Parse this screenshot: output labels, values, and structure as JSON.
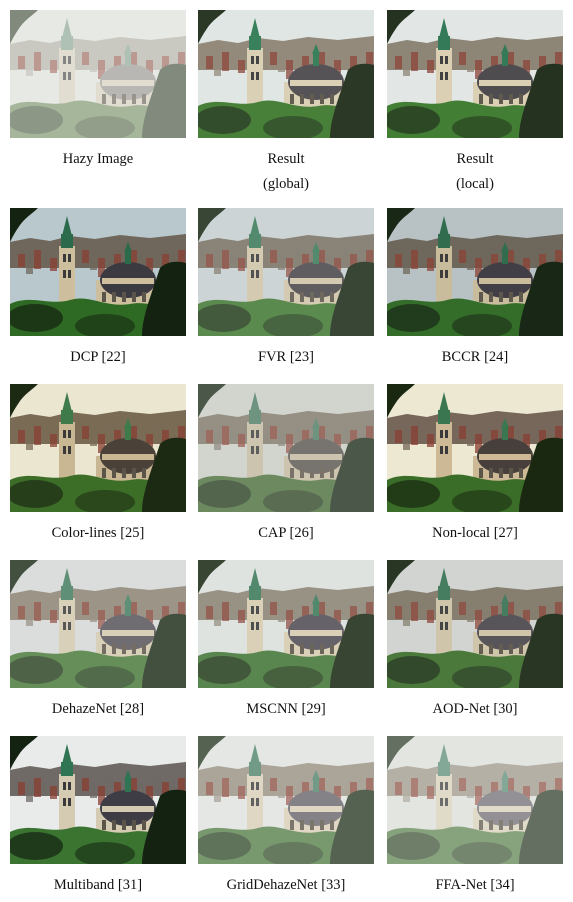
{
  "figure": {
    "panels": [
      {
        "caption": [
          "Hazy Image"
        ],
        "style": {
          "sky": "#d9dbd6",
          "city": "#a9a79c",
          "tower": "#7f9a86",
          "dome": "#8e8c86",
          "bldg": "#cfc8b4",
          "tree": "#6f8a5e",
          "dark": "#34432c",
          "haze": 0.38
        }
      },
      {
        "caption": [
          "Result",
          "(global)"
        ],
        "style": {
          "sky": "#dfe5e3",
          "city": "#8e8474",
          "tower": "#2f7a55",
          "dome": "#4d4a4e",
          "bldg": "#d8ceb2",
          "tree": "#3f7a30",
          "dark": "#1f2e1a",
          "haze": 0.05
        }
      },
      {
        "caption": [
          "Result",
          "(local)"
        ],
        "style": {
          "sky": "#e2e7e6",
          "city": "#8a8272",
          "tower": "#2e7654",
          "dome": "#4a474b",
          "bldg": "#dacfb1",
          "tree": "#3c7a2e",
          "dark": "#1d2c18",
          "haze": 0.03
        }
      },
      {
        "caption": [
          "DCP [22]"
        ],
        "style": {
          "sky": "#b9c8cc",
          "city": "#6f675c",
          "tower": "#2b6b4c",
          "dome": "#3b3a40",
          "bldg": "#cdbf9e",
          "tree": "#2f6a24",
          "dark": "#142211",
          "haze": 0.0
        }
      },
      {
        "caption": [
          "FVR [23]"
        ],
        "style": {
          "sky": "#c6cfd0",
          "city": "#7a7266",
          "tower": "#3c7a5a",
          "dome": "#49474b",
          "bldg": "#cdc3a7",
          "tree": "#447a36",
          "dark": "#1e2d1a",
          "haze": 0.12
        }
      },
      {
        "caption": [
          "BCCR [24]"
        ],
        "style": {
          "sky": "#b7c1c4",
          "city": "#6c6459",
          "tower": "#2d6a4c",
          "dome": "#3e3c42",
          "bldg": "#c8bb9c",
          "tree": "#2f6b25",
          "dark": "#152312",
          "haze": 0.02
        }
      },
      {
        "caption": [
          "Color-lines [25]"
        ],
        "style": {
          "sky": "#eae6cf",
          "city": "#7a6b55",
          "tower": "#3f7a4b",
          "dome": "#4a4238",
          "bldg": "#c9b793",
          "tree": "#3d6e28",
          "dark": "#1c2913",
          "haze": 0.0
        }
      },
      {
        "caption": [
          "CAP [26]"
        ],
        "style": {
          "sky": "#c9ccc4",
          "city": "#7e776a",
          "tower": "#4f7c62",
          "dome": "#5a5650",
          "bldg": "#c2b89f",
          "tree": "#4c6f3e",
          "dark": "#243220",
          "haze": 0.18
        }
      },
      {
        "caption": [
          "Non-local [27]"
        ],
        "style": {
          "sky": "#ece8d1",
          "city": "#76675a",
          "tower": "#3a7750",
          "dome": "#463f3c",
          "bldg": "#cdb996",
          "tree": "#3a6d27",
          "dark": "#1a2812",
          "haze": 0.0
        }
      },
      {
        "caption": [
          "DehazeNet [28]"
        ],
        "style": {
          "sky": "#d4d8d5",
          "city": "#8a8273",
          "tower": "#447c5f",
          "dome": "#57545a",
          "bldg": "#d3c8ad",
          "tree": "#4b7b3c",
          "dark": "#23321e",
          "haze": 0.15
        }
      },
      {
        "caption": [
          "MSCNN [29]"
        ],
        "style": {
          "sky": "#dce0dd",
          "city": "#8d8677",
          "tower": "#3f7b5c",
          "dome": "#545158",
          "bldg": "#d6cbb0",
          "tree": "#47793a",
          "dark": "#22301c",
          "haze": 0.1
        }
      },
      {
        "caption": [
          "AOD-Net [30]"
        ],
        "style": {
          "sky": "#cfd2cf",
          "city": "#7f7868",
          "tower": "#3b7457",
          "dome": "#4d4a50",
          "bldg": "#cdc2a5",
          "tree": "#40702f",
          "dark": "#1c2a17",
          "haze": 0.06
        }
      },
      {
        "caption": [
          "Multiband [31]"
        ],
        "style": {
          "sky": "#e8ebea",
          "city": "#6f6a66",
          "tower": "#2f7453",
          "dome": "#3e3d45",
          "bldg": "#d5cbb3",
          "tree": "#3a7430",
          "dark": "#142212",
          "haze": 0.0
        }
      },
      {
        "caption": [
          "GridDehazeNet [33]"
        ],
        "style": {
          "sky": "#dfe2de",
          "city": "#958e80",
          "tower": "#4e826a",
          "dome": "#66626a",
          "bldg": "#d7cdb4",
          "tree": "#577f4a",
          "dark": "#2b3a26",
          "haze": 0.2
        }
      },
      {
        "caption": [
          "FFA-Net [34]"
        ],
        "style": {
          "sky": "#dadcd7",
          "city": "#9b9587",
          "tower": "#5a8a73",
          "dome": "#6e6b70",
          "bldg": "#d6cdb6",
          "tree": "#5e8452",
          "dark": "#2f3d2a",
          "haze": 0.26
        }
      }
    ]
  }
}
